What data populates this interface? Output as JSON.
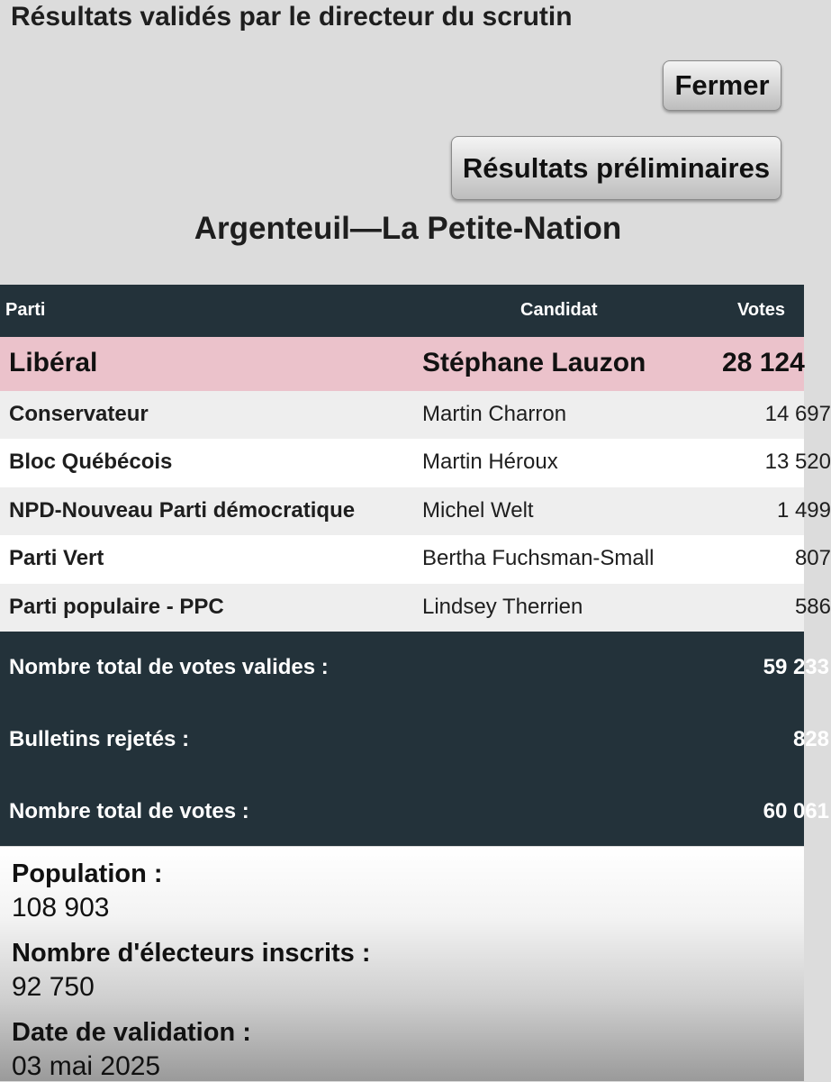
{
  "header": {
    "title": "Résultats validés par le directeur du scrutin",
    "close_label": "Fermer",
    "preliminary_label": "Résultats préliminaires",
    "riding": "Argenteuil—La Petite-Nation"
  },
  "table": {
    "columns": {
      "party": "Parti",
      "candidate": "Candidat",
      "votes": "Votes"
    },
    "winner": {
      "party": "Libéral",
      "candidate": "Stéphane Lauzon",
      "votes": "28 124"
    },
    "rows": [
      {
        "party": "Conservateur",
        "candidate": "Martin Charron",
        "votes": "14 697"
      },
      {
        "party": "Bloc Québécois",
        "candidate": "Martin Héroux",
        "votes": "13 520"
      },
      {
        "party": "NPD-Nouveau Parti démocratique",
        "candidate": "Michel Welt",
        "votes": "1 499"
      },
      {
        "party": "Parti Vert",
        "candidate": "Bertha Fuchsman-Small",
        "votes": "807"
      },
      {
        "party": "Parti populaire - PPC",
        "candidate": "Lindsey Therrien",
        "votes": "586"
      }
    ]
  },
  "totals": {
    "valid_label": "Nombre total de votes valides :",
    "valid_value": "59 233",
    "rejected_label": "Bulletins rejetés :",
    "rejected_value": "828",
    "total_label": "Nombre total de votes :",
    "total_value": "60 061"
  },
  "info": {
    "population_label": "Population :",
    "population_value": "108 903",
    "electors_label": "Nombre d'électeurs inscrits :",
    "electors_value": "92 750",
    "date_label": "Date de validation :",
    "date_value": "03 mai 2025"
  },
  "colors": {
    "header_bg": "#dcdcdc",
    "table_header_bg": "#23323a",
    "winner_bg": "#ebc2cb",
    "row_odd_bg": "#eeeeee",
    "row_even_bg": "#ffffff"
  }
}
